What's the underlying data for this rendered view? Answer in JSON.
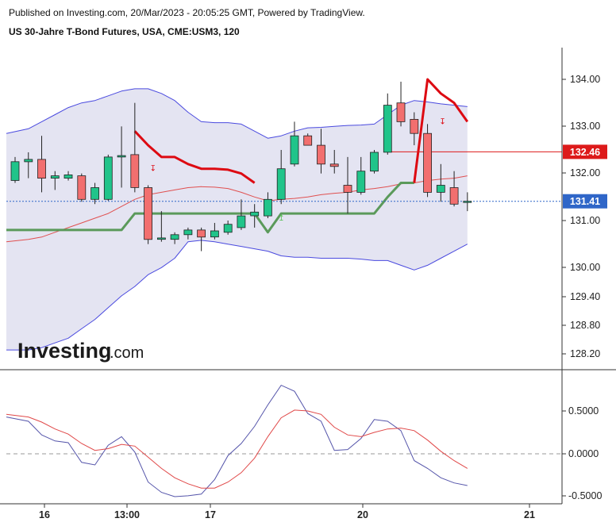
{
  "header": {
    "published": "Published on Investing.com, 20/Mar/2023 - 20:05:25 GMT, Powered by TradingView.",
    "title": "US 30-Jahre T-Bond Futures, USA, CME:USM3, 120"
  },
  "brand": {
    "name": "Investing",
    "suffix": ".com",
    "color": "#1b1b1b"
  },
  "colors": {
    "up": "#21c48a",
    "down": "#f26f6f",
    "band_fill": "#e4e4f2",
    "band_line": "#4a4adf",
    "basis": "#e05050",
    "stop_red": "#dd0a12",
    "stop_green": "#5b9a5b",
    "price_tag": "#2f66c8",
    "level_tag": "#dd1a1a"
  },
  "chart_data": [
    {
      "type": "candlestick",
      "panel": "price",
      "title": "US 30-Jahre T-Bond Futures, USA, CME:USM3, 120",
      "y_ticks": [
        "134.00",
        "133.00",
        "132.00",
        "131.00",
        "130.00",
        "129.40",
        "128.80",
        "128.20"
      ],
      "x_ticks": [
        "16",
        "13:00",
        "17",
        "20",
        "21"
      ],
      "ylim": [
        127.9,
        134.7
      ],
      "grid": false,
      "price_tags": [
        {
          "label": "132.46",
          "value": 132.46,
          "kind": "level"
        },
        {
          "label": "131.41",
          "value": 131.41,
          "kind": "last"
        }
      ],
      "candles": [
        {
          "open": 131.85,
          "high": 132.35,
          "low": 131.8,
          "close": 132.25
        },
        {
          "open": 132.25,
          "high": 132.45,
          "low": 131.9,
          "close": 132.3
        },
        {
          "open": 132.3,
          "high": 132.8,
          "low": 131.6,
          "close": 131.9
        },
        {
          "open": 131.9,
          "high": 132.05,
          "low": 131.65,
          "close": 131.95
        },
        {
          "open": 131.9,
          "high": 132.05,
          "low": 131.85,
          "close": 131.97
        },
        {
          "open": 131.95,
          "high": 132.0,
          "low": 131.4,
          "close": 131.45
        },
        {
          "open": 131.45,
          "high": 131.8,
          "low": 131.35,
          "close": 131.7
        },
        {
          "open": 131.45,
          "high": 132.4,
          "low": 131.42,
          "close": 132.35
        },
        {
          "open": 132.35,
          "high": 133.0,
          "low": 131.7,
          "close": 132.38
        },
        {
          "open": 132.4,
          "high": 133.5,
          "low": 131.6,
          "close": 131.7
        },
        {
          "open": 131.7,
          "high": 131.75,
          "low": 130.5,
          "close": 130.6
        },
        {
          "open": 130.6,
          "high": 131.2,
          "low": 130.55,
          "close": 130.63
        },
        {
          "open": 130.6,
          "high": 130.75,
          "low": 130.5,
          "close": 130.7
        },
        {
          "open": 130.7,
          "high": 130.85,
          "low": 130.6,
          "close": 130.8
        },
        {
          "open": 130.8,
          "high": 130.85,
          "low": 130.35,
          "close": 130.65
        },
        {
          "open": 130.65,
          "high": 130.95,
          "low": 130.6,
          "close": 130.78
        },
        {
          "open": 130.75,
          "high": 131.0,
          "low": 130.7,
          "close": 130.92
        },
        {
          "open": 130.85,
          "high": 131.45,
          "low": 130.8,
          "close": 131.1
        },
        {
          "open": 131.1,
          "high": 131.35,
          "low": 130.85,
          "close": 131.18
        },
        {
          "open": 131.1,
          "high": 131.6,
          "low": 131.05,
          "close": 131.45
        },
        {
          "open": 131.45,
          "high": 132.5,
          "low": 131.35,
          "close": 132.1
        },
        {
          "open": 132.2,
          "high": 133.1,
          "low": 132.15,
          "close": 132.8
        },
        {
          "open": 132.8,
          "high": 132.85,
          "low": 132.6,
          "close": 132.6
        },
        {
          "open": 132.6,
          "high": 132.95,
          "low": 132.0,
          "close": 132.2
        },
        {
          "open": 132.2,
          "high": 132.5,
          "low": 132.0,
          "close": 132.15
        },
        {
          "open": 131.75,
          "high": 132.35,
          "low": 131.15,
          "close": 131.6
        },
        {
          "open": 131.6,
          "high": 132.35,
          "low": 131.55,
          "close": 132.05
        },
        {
          "open": 132.05,
          "high": 132.5,
          "low": 132.0,
          "close": 132.45
        },
        {
          "open": 132.45,
          "high": 133.7,
          "low": 132.4,
          "close": 133.45
        },
        {
          "open": 133.5,
          "high": 133.95,
          "low": 133.0,
          "close": 133.1
        },
        {
          "open": 133.15,
          "high": 133.3,
          "low": 132.6,
          "close": 132.85
        },
        {
          "open": 132.85,
          "high": 133.05,
          "low": 131.5,
          "close": 131.6
        },
        {
          "open": 131.6,
          "high": 132.2,
          "low": 131.4,
          "close": 131.75
        },
        {
          "open": 131.7,
          "high": 132.05,
          "low": 131.3,
          "close": 131.35
        },
        {
          "open": 131.41,
          "high": 131.6,
          "low": 131.2,
          "close": 131.41
        }
      ],
      "bollinger_upper": [
        132.85,
        132.95,
        133.1,
        133.25,
        133.4,
        133.5,
        133.55,
        133.65,
        133.75,
        133.8,
        133.8,
        133.7,
        133.55,
        133.3,
        133.1,
        133.08,
        133.08,
        133.05,
        132.9,
        132.75,
        132.8,
        132.9,
        132.97,
        132.98,
        133.0,
        133.02,
        133.03,
        133.05,
        133.25,
        133.45,
        133.55,
        133.52,
        133.48,
        133.45,
        133.42
      ],
      "bollinger_lower": [
        128.25,
        128.25,
        128.3,
        128.4,
        128.5,
        128.7,
        128.9,
        129.15,
        129.4,
        129.6,
        129.85,
        130.0,
        130.2,
        130.55,
        130.58,
        130.55,
        130.5,
        130.45,
        130.4,
        130.35,
        130.25,
        130.22,
        130.22,
        130.2,
        130.2,
        130.2,
        130.18,
        130.15,
        130.15,
        130.05,
        129.95,
        130.05,
        130.2,
        130.35,
        130.5
      ],
      "bollinger_basis": [
        130.55,
        130.6,
        130.65,
        130.75,
        130.85,
        130.95,
        131.05,
        131.15,
        131.3,
        131.45,
        131.55,
        131.6,
        131.65,
        131.7,
        131.72,
        131.71,
        131.68,
        131.6,
        131.5,
        131.42,
        131.45,
        131.47,
        131.5,
        131.55,
        131.58,
        131.6,
        131.65,
        131.68,
        131.72,
        131.78,
        131.8,
        131.85,
        131.88,
        131.9,
        131.95
      ],
      "stop_resistance": {
        "from_index": 9,
        "to_index": 18,
        "values": [
          132.9,
          132.6,
          132.35,
          132.35,
          132.2,
          132.1,
          132.1,
          132.08,
          132.0,
          131.8
        ]
      },
      "stop_resistance_2": {
        "from_index": 30,
        "to_index": 34,
        "values": [
          131.8,
          134.0,
          133.7,
          133.5,
          133.1
        ]
      },
      "stop_support": {
        "from_index": 0,
        "to_index": 30,
        "values": [
          130.8,
          130.8,
          130.8,
          130.8,
          130.8,
          130.8,
          130.8,
          130.8,
          130.8,
          131.15,
          131.15,
          131.15,
          131.15,
          131.15,
          131.15,
          131.15,
          131.15,
          131.15,
          131.15,
          130.75,
          131.15,
          131.15,
          131.15,
          131.15,
          131.15,
          131.15,
          131.15,
          131.15,
          131.5,
          131.8,
          131.8
        ]
      }
    },
    {
      "type": "line",
      "panel": "oscillator",
      "y_ticks": [
        "0.5000",
        "0.0000",
        "-0.5000"
      ],
      "ylim": [
        -0.58,
        0.92
      ],
      "zero_line": true,
      "series": [
        {
          "color": "#5555aa",
          "values": [
            0.43,
            0.38,
            0.22,
            0.15,
            0.13,
            -0.1,
            -0.13,
            0.1,
            0.2,
            0.02,
            -0.33,
            -0.45,
            -0.5,
            -0.49,
            -0.47,
            -0.3,
            -0.02,
            0.12,
            0.32,
            0.57,
            0.8,
            0.73,
            0.47,
            0.38,
            0.04,
            0.05,
            0.18,
            0.4,
            0.38,
            0.27,
            -0.08,
            -0.17,
            -0.28,
            -0.34,
            -0.37
          ]
        },
        {
          "color": "#e04848",
          "values": [
            0.46,
            0.43,
            0.37,
            0.29,
            0.23,
            0.12,
            0.04,
            0.06,
            0.11,
            0.09,
            -0.04,
            -0.17,
            -0.28,
            -0.35,
            -0.4,
            -0.4,
            -0.33,
            -0.22,
            -0.05,
            0.2,
            0.42,
            0.51,
            0.5,
            0.46,
            0.31,
            0.22,
            0.2,
            0.25,
            0.29,
            0.3,
            0.27,
            0.16,
            0.03,
            -0.08,
            -0.17
          ]
        }
      ]
    }
  ]
}
